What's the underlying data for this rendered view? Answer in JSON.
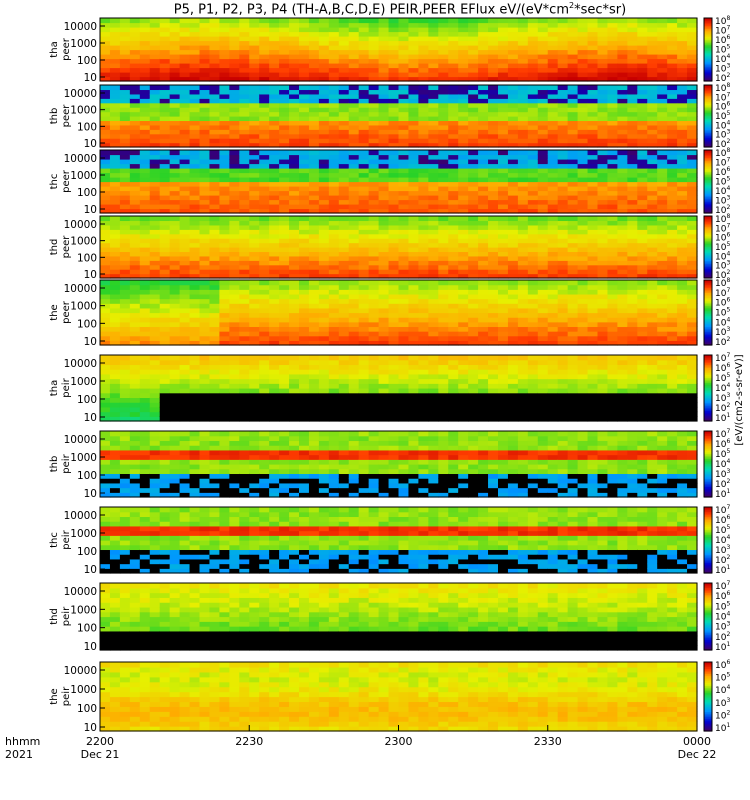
{
  "chart_data": {
    "type": "heatmap",
    "title": "P5, P1, P2, P3, P4 (TH-A,B,C,D,E) PEIR,PEER EFlux eV/(eV*cm",
    "title_sup": "2",
    "title_tail": "*sec*sr)",
    "x_ticks": [
      {
        "time": "2200",
        "date": "Dec 21"
      },
      {
        "time": "2230",
        "date": ""
      },
      {
        "time": "2300",
        "date": ""
      },
      {
        "time": "2330",
        "date": ""
      },
      {
        "time": "0000",
        "date": "Dec 22"
      }
    ],
    "x_corner_labels": [
      "hhmm",
      "2021"
    ],
    "y_scale": "log",
    "y_ticks": [
      "10",
      "100",
      "1000",
      "10000"
    ],
    "colorbar_label": "[eV/(cm2-s-sr-eV)]",
    "panels": [
      {
        "probe": "tha",
        "species": "peer",
        "cbar_exps": [
          2,
          3,
          4,
          5,
          6,
          7,
          8
        ],
        "pattern": "hot"
      },
      {
        "probe": "thb",
        "species": "peer",
        "cbar_exps": [
          2,
          3,
          4,
          5,
          6,
          7,
          8
        ],
        "pattern": "layered"
      },
      {
        "probe": "thc",
        "species": "peer",
        "cbar_exps": [
          2,
          3,
          4,
          5,
          6,
          7,
          8
        ],
        "pattern": "layered2"
      },
      {
        "probe": "thd",
        "species": "peer",
        "cbar_exps": [
          2,
          3,
          4,
          5,
          6,
          7,
          8
        ],
        "pattern": "warm"
      },
      {
        "probe": "the",
        "species": "peer",
        "cbar_exps": [
          2,
          3,
          4,
          5,
          6,
          7,
          8
        ],
        "pattern": "hot2"
      },
      {
        "probe": "tha",
        "species": "peir",
        "cbar_exps": [
          1,
          2,
          3,
          4,
          5,
          6,
          7
        ],
        "pattern": "black_low"
      },
      {
        "probe": "thb",
        "species": "peir",
        "cbar_exps": [
          1,
          2,
          3,
          4,
          5,
          6,
          7
        ],
        "pattern": "band"
      },
      {
        "probe": "thc",
        "species": "peir",
        "cbar_exps": [
          1,
          2,
          3,
          4,
          5,
          6,
          7
        ],
        "pattern": "band"
      },
      {
        "probe": "thd",
        "species": "peir",
        "cbar_exps": [
          1,
          2,
          3,
          4,
          5,
          6,
          7
        ],
        "pattern": "black_low2"
      },
      {
        "probe": "the",
        "species": "peir",
        "cbar_exps": [
          1,
          2,
          3,
          4,
          5,
          6
        ],
        "pattern": "warm_ion"
      }
    ]
  }
}
